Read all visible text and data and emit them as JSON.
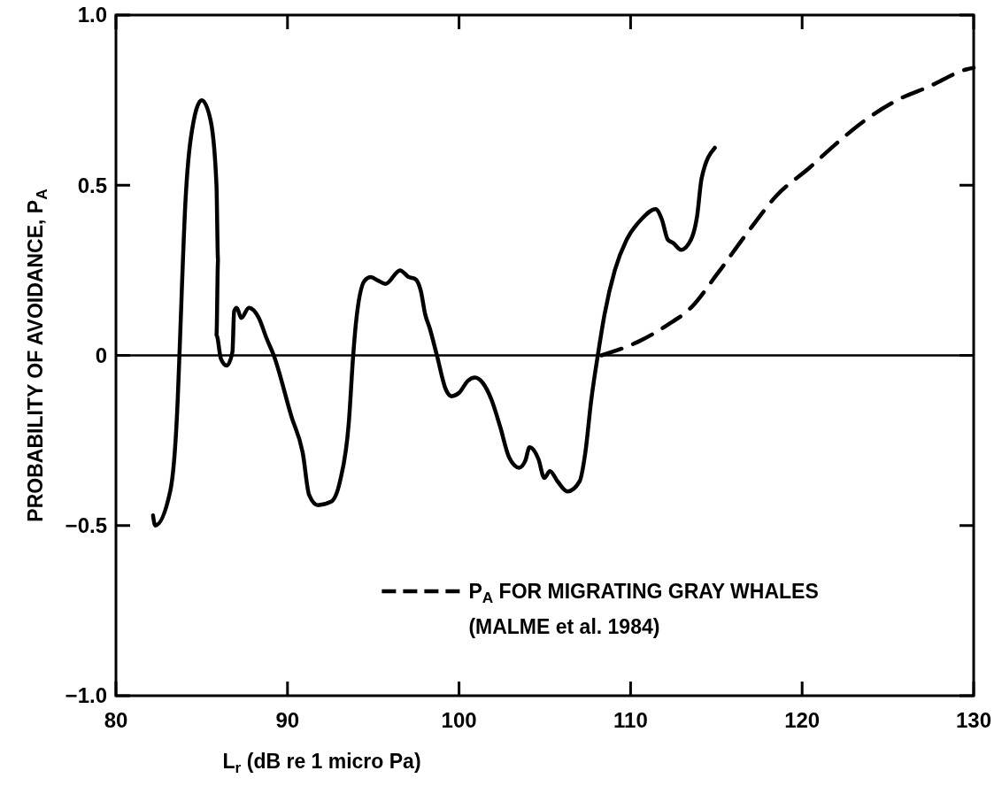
{
  "chart_data": {
    "type": "line",
    "xlabel": "L$_{r}$ (dB re 1 micro Pa)",
    "ylabel": "PROBABILITY OF AVOIDANCE, P$_{A}$",
    "xlim": [
      80,
      130
    ],
    "xticks": [
      80,
      90,
      100,
      110,
      120,
      130
    ],
    "ylim": [
      -1,
      1
    ],
    "yticks": [
      {
        "value": -1,
        "label": "−1.0"
      },
      {
        "value": -0.5,
        "label": "−0.5"
      },
      0,
      {
        "value": 0.5,
        "label": "0.5"
      },
      {
        "value": 1,
        "label": "1.0"
      }
    ],
    "grid": false,
    "legend": "bottom right",
    "marker": "none",
    "ref_lines": [
      {
        "axis": "y",
        "value": 0,
        "color": "#000000"
      }
    ],
    "annotations": [
      "(MALME et al. 1984)"
    ],
    "series": [
      {
        "color": "#000000",
        "line_style": "solid",
        "x": [
          82.16,
          82.29,
          83.16,
          83.6,
          83.7,
          84.06,
          84.37,
          85.0,
          85.52,
          85.86,
          85.95,
          85.86,
          86.12,
          86.46,
          86.79,
          86.89,
          87.04,
          87.3,
          87.75,
          88.33,
          88.78,
          89.2,
          90.23,
          90.9,
          91.26,
          91.77,
          92.54,
          93.06,
          93.57,
          93.83,
          93.98,
          94.5,
          94.86,
          95.27,
          95.72,
          96.56,
          97.07,
          97.43,
          97.77,
          98.03,
          98.29,
          98.71,
          99.23,
          99.57,
          100.0,
          100.51,
          100.93,
          101.37,
          101.89,
          102.4,
          102.92,
          103.5,
          103.86,
          104.11,
          104.63,
          104.97,
          105.3,
          105.74,
          106.32,
          107.03,
          107.35,
          107.71,
          108.12,
          108.48,
          109.08,
          109.77,
          110.63,
          111.46,
          111.82,
          112.17,
          112.49,
          112.94,
          113.52,
          113.88,
          114.14,
          114.91
        ],
        "values": [
          -0.47,
          -0.5,
          -0.4,
          -0.13,
          0,
          0.46,
          0.64,
          0.75,
          0.69,
          0.5,
          0.28,
          0.06,
          -0.01,
          -0.03,
          0.01,
          0.13,
          0.14,
          0.11,
          0.14,
          0.11,
          0.05,
          0,
          -0.18,
          -0.29,
          -0.41,
          -0.44,
          -0.43,
          -0.37,
          -0.2,
          0,
          0.09,
          0.22,
          0.23,
          0.22,
          0.21,
          0.25,
          0.23,
          0.225,
          0.19,
          0.12,
          0.08,
          0,
          -0.1,
          -0.12,
          -0.11,
          -0.075,
          -0.065,
          -0.08,
          -0.13,
          -0.21,
          -0.3,
          -0.33,
          -0.31,
          -0.27,
          -0.305,
          -0.36,
          -0.34,
          -0.37,
          -0.4,
          -0.37,
          -0.29,
          -0.13,
          0.01,
          0.12,
          0.25,
          0.34,
          0.4,
          0.43,
          0.4,
          0.34,
          0.33,
          0.31,
          0.34,
          0.41,
          0.52,
          0.61
        ]
      },
      {
        "name": "P$_{A}$ FOR MIGRATING GRAY WHALES",
        "color": "#000000",
        "line_style": "dashed",
        "x": [
          108.3,
          110.44,
          112.17,
          113.52,
          115.06,
          116.8,
          118.52,
          120.4,
          121.94,
          123.65,
          125.54,
          127.4,
          129.56,
          130
        ],
        "values": [
          0,
          0.04,
          0.09,
          0.14,
          0.24,
          0.36,
          0.47,
          0.55,
          0.62,
          0.69,
          0.75,
          0.79,
          0.84,
          0.845
        ]
      }
    ]
  }
}
